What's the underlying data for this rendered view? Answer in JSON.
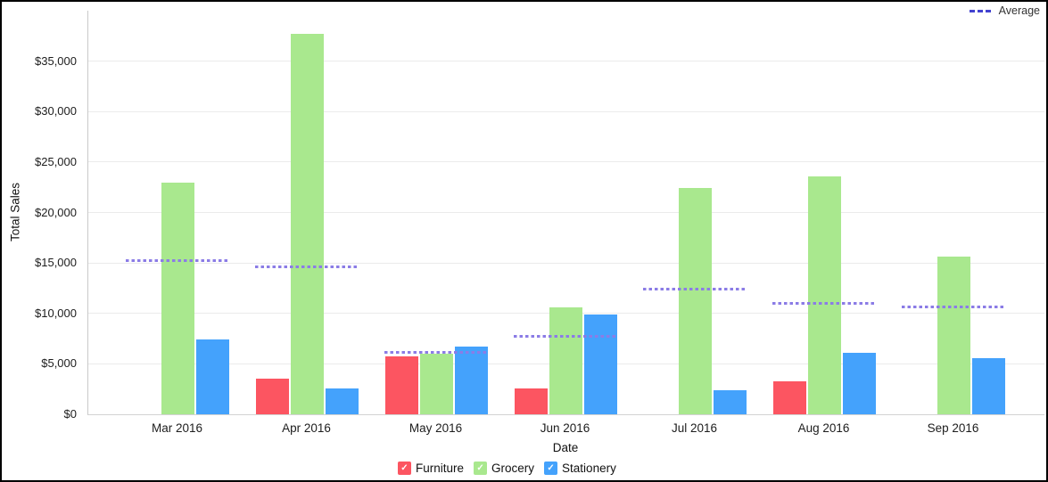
{
  "chart_data": {
    "type": "bar",
    "title": "",
    "xlabel": "Date",
    "ylabel": "Total Sales",
    "ylim": [
      0,
      40000
    ],
    "grid": true,
    "legend_position": "bottom",
    "y_ticks": [
      {
        "value": 0,
        "label": "$0"
      },
      {
        "value": 5000,
        "label": "$5,000"
      },
      {
        "value": 10000,
        "label": "$10,000"
      },
      {
        "value": 15000,
        "label": "$15,000"
      },
      {
        "value": 20000,
        "label": "$20,000"
      },
      {
        "value": 25000,
        "label": "$25,000"
      },
      {
        "value": 30000,
        "label": "$30,000"
      },
      {
        "value": 35000,
        "label": "$35,000"
      }
    ],
    "categories": [
      "Mar 2016",
      "Apr 2016",
      "May 2016",
      "Jun 2016",
      "Jul 2016",
      "Aug 2016",
      "Sep 2016"
    ],
    "series": [
      {
        "name": "Furniture",
        "color": "#fc5561",
        "values": [
          null,
          3500,
          5700,
          2600,
          null,
          3300,
          null
        ]
      },
      {
        "name": "Grocery",
        "color": "#a9e88e",
        "values": [
          23000,
          37700,
          6000,
          10600,
          22400,
          23600,
          15600
        ]
      },
      {
        "name": "Stationery",
        "color": "#44a2fc",
        "values": [
          7400,
          2600,
          6700,
          9900,
          2400,
          6100,
          5600
        ]
      }
    ],
    "average_line": {
      "label": "Average",
      "line_color": "#8b7ce6",
      "legend_color": "#4343d0",
      "values": [
        15200,
        14600,
        6133,
        7700,
        12400,
        11000,
        10600
      ]
    },
    "legend_check_glyph": "✓"
  }
}
